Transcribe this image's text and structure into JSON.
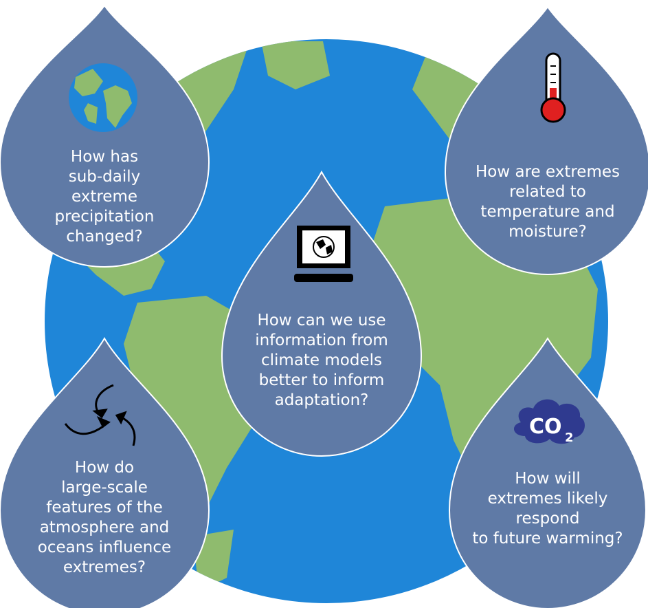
{
  "colors": {
    "ocean": "#1f86d8",
    "land": "#8fbb6e",
    "drop": "#5f7aa6",
    "drop_text": "#ffffff",
    "co2_cloud": "#2f3a8f",
    "thermo_bulb": "#e02020"
  },
  "questions": [
    {
      "id": "top-left",
      "icon": "globe-icon",
      "text": "How has\nsub-daily\nextreme\nprecipitation\nchanged?"
    },
    {
      "id": "top-right",
      "icon": "thermometer-icon",
      "text": "How are extremes\nrelated to\ntemperature and\nmoisture?"
    },
    {
      "id": "center",
      "icon": "computer-globe-icon",
      "text": "How can we use\ninformation from\nclimate models\nbetter to inform\nadaptation?"
    },
    {
      "id": "bottom-left",
      "icon": "circulation-arrows-icon",
      "text": "How do\nlarge-scale\nfeatures of the\natmosphere and\noceans influence\nextremes?"
    },
    {
      "id": "bottom-right",
      "icon": "co2-cloud-icon",
      "text": "How will\nextremes likely\nrespond\nto future warming?"
    }
  ],
  "co2_label": {
    "main": "CO",
    "sub": "2"
  }
}
